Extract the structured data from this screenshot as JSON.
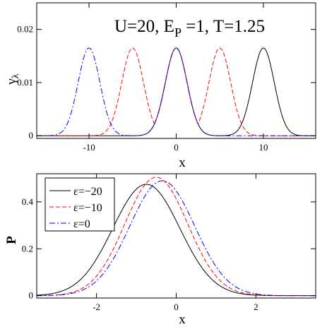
{
  "chart_data": [
    {
      "type": "line",
      "annotation": {
        "main": "U=20, E",
        "sub": "P",
        "rest": " =1, T=1.25"
      },
      "xlabel": "x",
      "ylabel": "γ",
      "ylabel_sub": "λ",
      "xlim": [
        -16,
        16
      ],
      "ylim": [
        -0.0005,
        0.025
      ],
      "xticks": [
        -10,
        0,
        10
      ],
      "yticks": [
        0,
        0.01,
        0.02
      ],
      "ytick_labels": [
        "0",
        "0.01",
        "0.02"
      ],
      "xtick_labels": [
        "-10",
        "0",
        "10"
      ],
      "peak": 0.0165,
      "width": 1.25,
      "series": [
        {
          "color": "#000000",
          "dash": "",
          "centers": [
            0,
            10
          ]
        },
        {
          "color": "#ff0000",
          "dash": "6,3",
          "centers": [
            -5,
            0,
            5
          ]
        },
        {
          "color": "#0000ff",
          "dash": "8,3,2,3",
          "centers": [
            -10,
            0
          ]
        }
      ]
    },
    {
      "type": "line",
      "xlabel": "x",
      "ylabel": "P",
      "xlim": [
        -3.5,
        3.5
      ],
      "ylim": [
        -0.01,
        0.52
      ],
      "xticks": [
        -2,
        0,
        2
      ],
      "yticks": [
        0,
        0.2,
        0.4
      ],
      "xtick_labels": [
        "-2",
        "0",
        "2"
      ],
      "ytick_labels": [
        "0",
        "0.2",
        "0.4"
      ],
      "legend": "top-left",
      "series": [
        {
          "name": "ε=−20",
          "color": "#000000",
          "dash": "",
          "mu": -0.75,
          "peak": 0.475
        },
        {
          "name": "ε=−10",
          "color": "#ff0000",
          "dash": "6,3",
          "mu": -0.5,
          "peak": 0.505
        },
        {
          "name": "ε=0",
          "color": "#0000ff",
          "dash": "8,3,2,3",
          "mu": -0.35,
          "peak": 0.49
        }
      ]
    }
  ]
}
